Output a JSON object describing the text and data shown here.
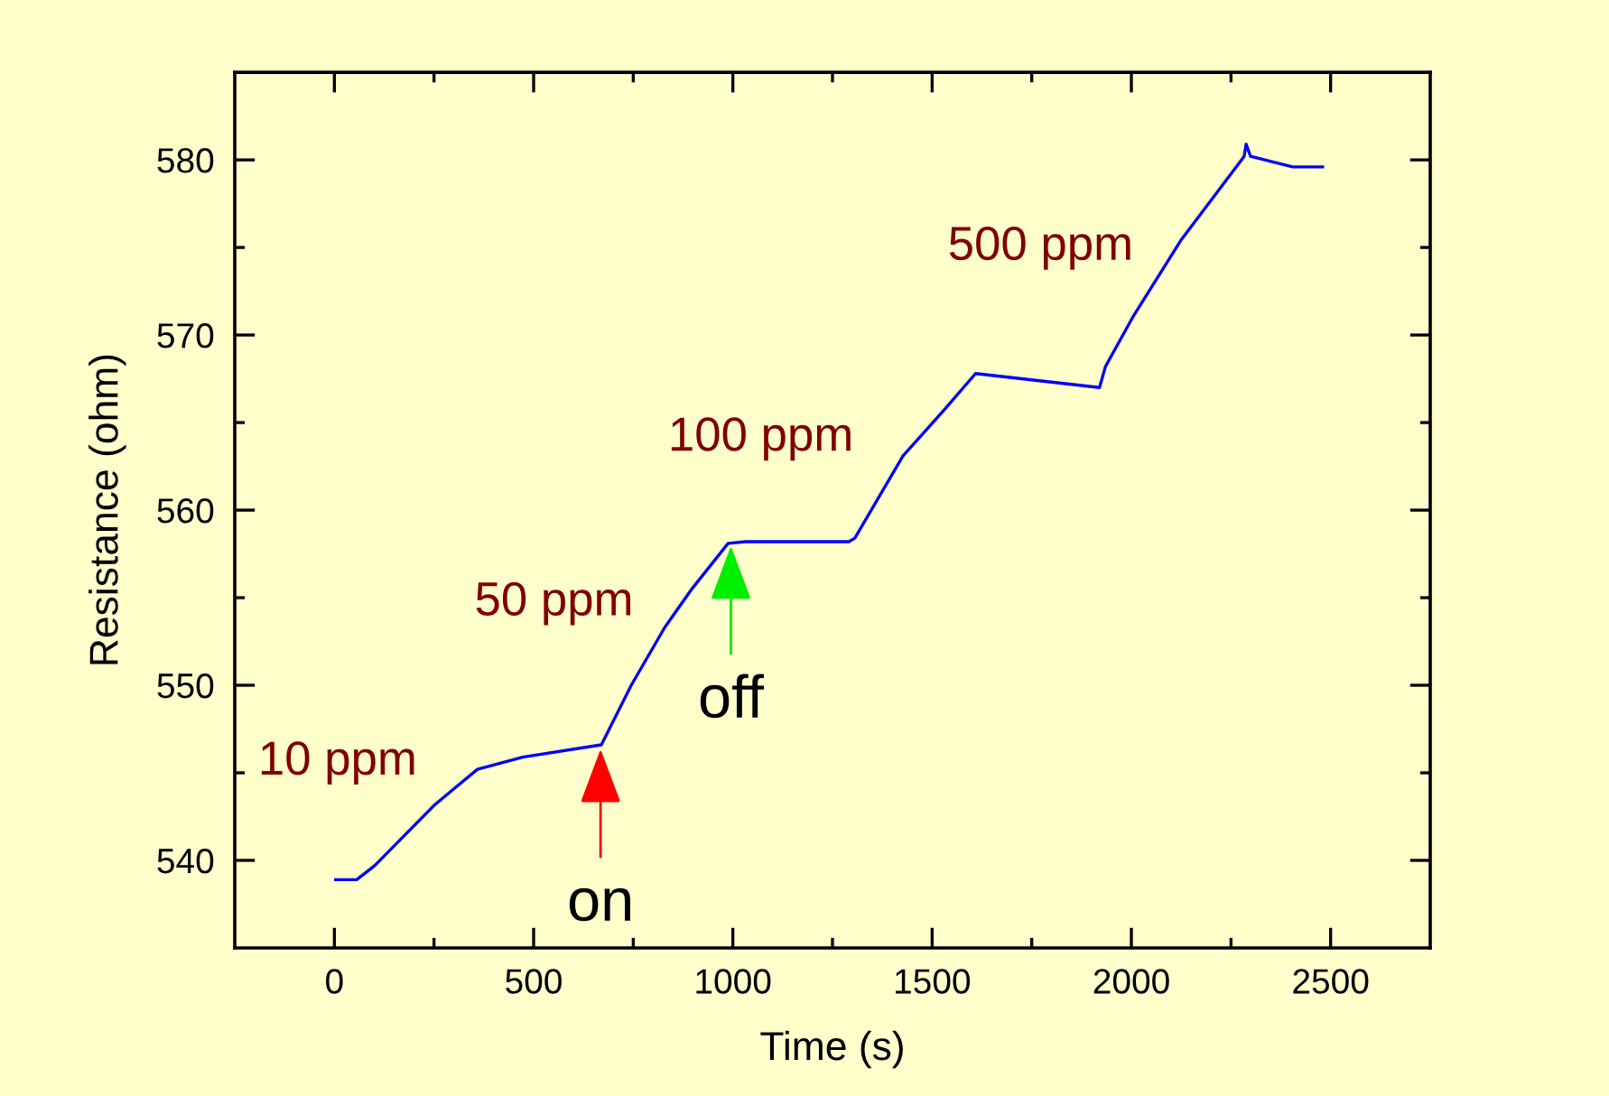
{
  "chart_data": {
    "type": "line",
    "xlabel": "Time (s)",
    "ylabel": "Resistance (ohm)",
    "xlim": [
      -250,
      2750
    ],
    "ylim": [
      535,
      585
    ],
    "xticks": [
      0,
      {
        "value": 250,
        "label": null
      },
      500,
      {
        "value": 750,
        "label": null
      },
      1000,
      {
        "value": 1250,
        "label": null
      },
      1500,
      {
        "value": 1750,
        "label": null
      },
      2000,
      {
        "value": 2250,
        "label": null
      },
      2500
    ],
    "yticks": [
      540,
      {
        "value": 545,
        "label": null
      },
      550,
      {
        "value": 555,
        "label": null
      },
      560,
      {
        "value": 565,
        "label": null
      },
      570,
      {
        "value": 575,
        "label": null
      },
      580
    ],
    "grid": false,
    "legend": false,
    "marker": "none",
    "line_style": "solid",
    "series": [
      {
        "color": "#0000ff",
        "x": [
          3,
          56,
          101,
          253,
          359,
          473,
          670,
          745,
          829,
          897,
          988,
          1032,
          1291,
          1306,
          1427,
          1533,
          1609,
          1920,
          1935,
          2003,
          2124,
          2283,
          2288,
          2299,
          2405,
          2480
        ],
        "values": [
          538.9,
          538.9,
          539.7,
          543.2,
          545.2,
          545.9,
          546.6,
          550.0,
          553.3,
          555.5,
          558.1,
          558.2,
          558.2,
          558.4,
          563.1,
          565.8,
          567.8,
          567.0,
          568.2,
          571.0,
          575.4,
          580.2,
          580.9,
          580.2,
          579.6,
          579.6
        ]
      }
    ],
    "annotations": [
      "10 ppm",
      "50 ppm",
      "100 ppm",
      "500 ppm",
      {
        "text": "on",
        "x": 668,
        "y": 546.5
      },
      {
        "text": "off",
        "x": 995,
        "y": 558.1
      }
    ]
  }
}
